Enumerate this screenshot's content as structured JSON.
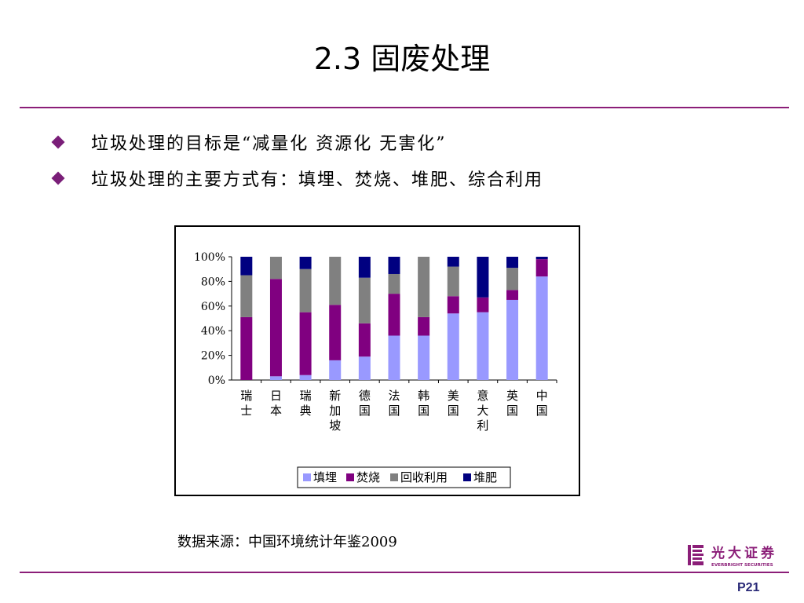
{
  "slide": {
    "title": "2.3  固废处理",
    "bullets": [
      "垃圾处理的目标是“减量化 资源化 无害化”",
      "垃圾处理的主要方式有：填埋、焚烧、堆肥、综合利用"
    ],
    "source": "数据来源：中国环境统计年鉴2009",
    "page_number": "P21",
    "logo": {
      "name": "光大证券",
      "subtitle": "EVERBRIGHT SECURITIES",
      "color": "#8b1e78"
    }
  },
  "chart_data": {
    "type": "bar",
    "stacked": true,
    "percent": true,
    "categories": [
      "瑞士",
      "日本",
      "瑞典",
      "新加坡",
      "德国",
      "法国",
      "韩国",
      "美国",
      "意大利",
      "英国",
      "中国"
    ],
    "series": [
      {
        "name": "填埋",
        "color": "#9999ff",
        "values": [
          0,
          3,
          4,
          16,
          19,
          36,
          36,
          54,
          55,
          65,
          84
        ]
      },
      {
        "name": "焚烧",
        "color": "#800080",
        "values": [
          51,
          79,
          51,
          45,
          27,
          34,
          15,
          14,
          12,
          8,
          14
        ]
      },
      {
        "name": "回收利用",
        "color": "#808080",
        "values": [
          34,
          18,
          35,
          39,
          37,
          16,
          49,
          24,
          0,
          18,
          0
        ]
      },
      {
        "name": "堆肥",
        "color": "#000080",
        "values": [
          15,
          0,
          10,
          0,
          17,
          14,
          0,
          8,
          33,
          9,
          2
        ]
      }
    ],
    "ylim": [
      0,
      100
    ],
    "yticks": [
      "0%",
      "20%",
      "40%",
      "60%",
      "80%",
      "100%"
    ],
    "legend": "bottom",
    "grid": false
  }
}
